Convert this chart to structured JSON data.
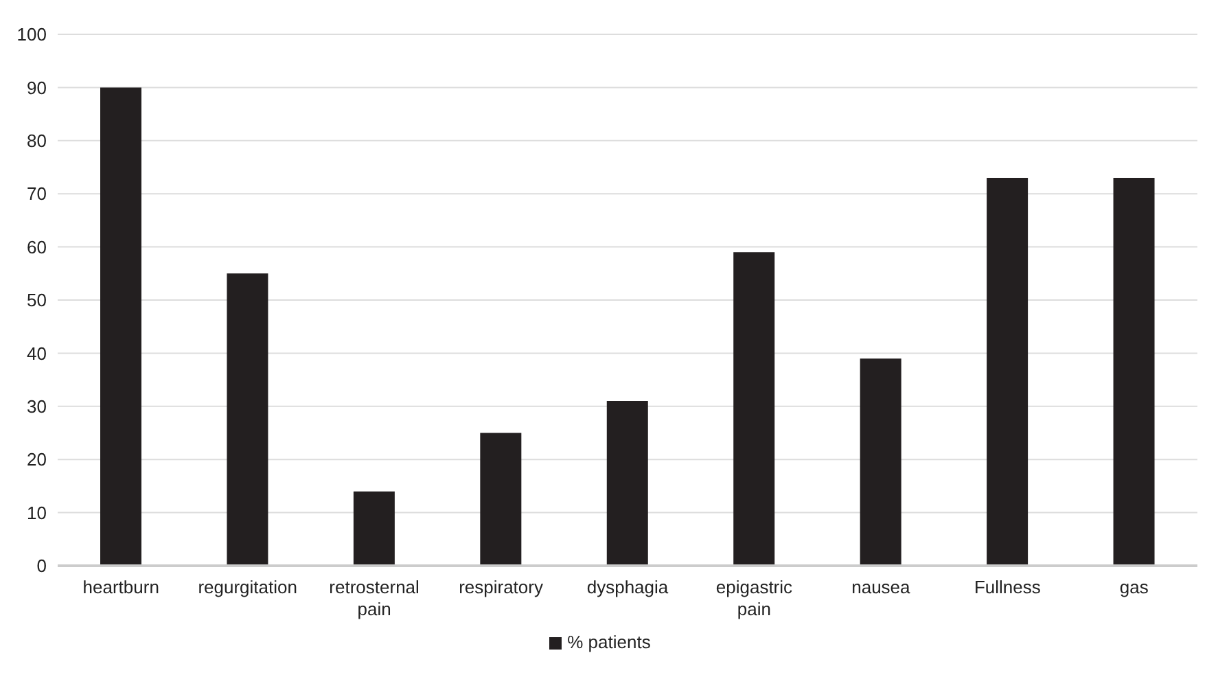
{
  "chart_data": {
    "type": "bar",
    "categories": [
      "heartburn",
      "regurgitation",
      "retrosternal pain",
      "respiratory",
      "dysphagia",
      "epigastric pain",
      "nausea",
      "Fullness",
      "gas"
    ],
    "series": [
      {
        "name": "% patients",
        "color": "#231f20",
        "values": [
          90,
          55,
          14,
          25,
          31,
          59,
          39,
          73,
          73
        ]
      }
    ],
    "ylim": [
      0,
      100
    ],
    "yticks": [
      0,
      10,
      20,
      30,
      40,
      50,
      60,
      70,
      80,
      90,
      100
    ],
    "grid": "y",
    "legend": "bottom"
  }
}
